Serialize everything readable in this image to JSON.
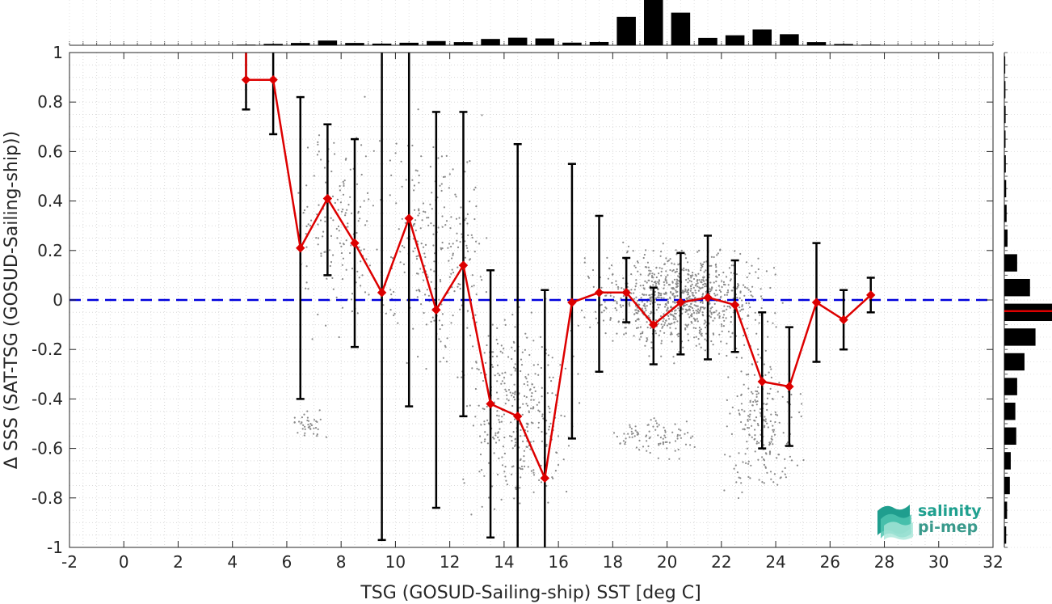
{
  "chart_data": {
    "type": "scatter",
    "xlabel": "TSG (GOSUD-Sailing-ship) SST [deg C]",
    "ylabel": "Δ SSS (SAT-TSG (GOSUD-Sailing-ship))",
    "xlim": [
      -2,
      32
    ],
    "ylim": [
      -1,
      1
    ],
    "xticks": [
      -2,
      0,
      2,
      4,
      6,
      8,
      10,
      12,
      14,
      16,
      18,
      20,
      22,
      24,
      26,
      28,
      30,
      32
    ],
    "yticks": [
      -1,
      -0.8,
      -0.6,
      -0.4,
      -0.2,
      0,
      0.2,
      0.4,
      0.6,
      0.8,
      1
    ],
    "ytick_labels": [
      "-1",
      "-0.8",
      "-0.6",
      "-0.4",
      "-0.2",
      "0",
      "0.2",
      "0.4",
      "0.6",
      "0.8",
      "1"
    ],
    "grid": true,
    "zero_line": {
      "y": 0,
      "color": "#0000dd",
      "style": "dashed"
    },
    "binned_mean": {
      "color": "#dd0000",
      "x": [
        4.5,
        5.5,
        6.5,
        7.5,
        8.5,
        9.5,
        10.5,
        11.5,
        12.5,
        13.5,
        14.5,
        15.5,
        16.5,
        17.5,
        18.5,
        19.5,
        20.5,
        21.5,
        22.5,
        23.5,
        24.5,
        25.5,
        26.5,
        27.5
      ],
      "mean": [
        0.89,
        0.89,
        0.21,
        0.41,
        0.23,
        0.03,
        0.33,
        -0.04,
        0.14,
        -0.42,
        -0.47,
        -0.72,
        -0.01,
        0.03,
        0.03,
        -0.1,
        -0.01,
        0.01,
        -0.02,
        -0.33,
        -0.35,
        -0.01,
        -0.08,
        0.02
      ],
      "err_low": [
        0.77,
        0.67,
        -0.4,
        0.1,
        -0.19,
        -0.97,
        -0.43,
        -0.84,
        -0.47,
        -0.96,
        -1.1,
        -1.1,
        -0.56,
        -0.29,
        -0.09,
        -0.26,
        -0.22,
        -0.24,
        -0.21,
        -0.6,
        -0.59,
        -0.25,
        -0.2,
        -0.05
      ],
      "err_high": [
        1.05,
        1.05,
        0.82,
        0.71,
        0.65,
        1.05,
        1.05,
        0.76,
        0.76,
        0.12,
        0.63,
        0.04,
        0.55,
        0.34,
        0.17,
        0.05,
        0.19,
        0.26,
        0.16,
        -0.05,
        -0.11,
        0.23,
        0.04,
        0.09
      ]
    },
    "scatter_color": "#8a8a8a",
    "top_histogram": {
      "bin_centers": [
        4.5,
        5.5,
        6.5,
        7.5,
        8.5,
        9.5,
        10.5,
        11.5,
        12.5,
        13.5,
        14.5,
        15.5,
        16.5,
        17.5,
        18.5,
        19.5,
        20.5,
        21.5,
        22.5,
        23.5,
        24.5,
        25.5,
        26.5,
        27.5
      ],
      "counts": [
        0.6,
        1.3,
        2.2,
        4.5,
        2.2,
        1.6,
        2.4,
        4.0,
        3.0,
        6.0,
        7.2,
        6.5,
        2.5,
        3.1,
        27,
        43,
        31,
        7.0,
        9.5,
        15,
        10.5,
        3.0,
        1.2,
        0.6
      ]
    },
    "right_histogram": {
      "bin_centers": [
        0.95,
        0.85,
        0.75,
        0.65,
        0.55,
        0.45,
        0.35,
        0.25,
        0.15,
        0.05,
        -0.05,
        -0.15,
        -0.25,
        -0.35,
        -0.45,
        -0.55,
        -0.65,
        -0.75,
        -0.85,
        -0.95
      ],
      "counts": [
        1,
        1.2,
        1.4,
        1.3,
        1.6,
        2.0,
        2.5,
        3.5,
        14,
        28,
        52,
        34,
        22,
        14,
        12,
        13,
        7,
        6,
        3,
        2
      ],
      "mean_line": -0.045
    }
  },
  "logo": {
    "line1": "salinity",
    "line2": "pi-mep"
  }
}
